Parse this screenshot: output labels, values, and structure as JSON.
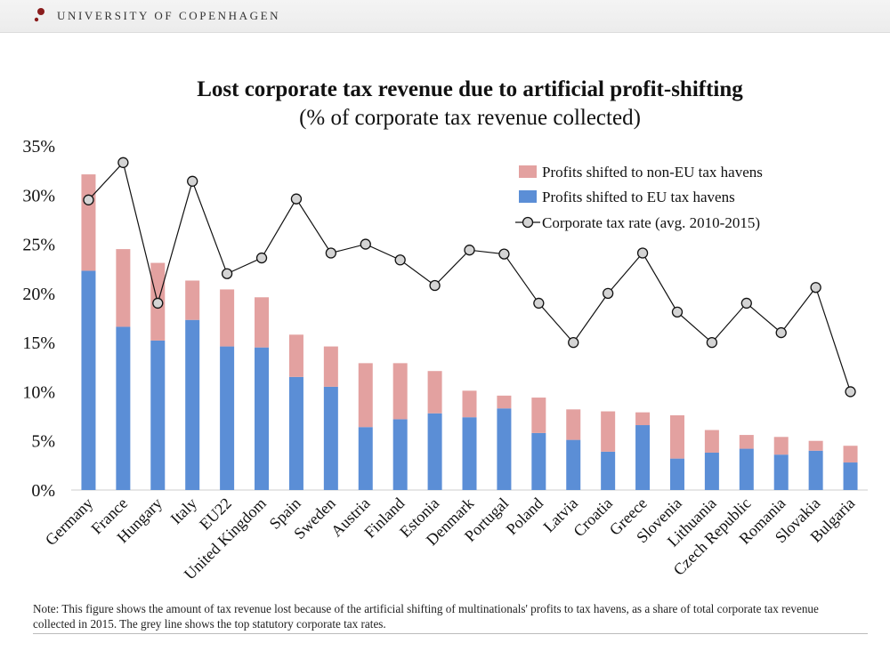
{
  "header": {
    "brand": "UNIVERSITY OF COPENHAGEN",
    "logo_icon": "university-seal-icon"
  },
  "note": {
    "text": "Note:  This figure shows the amount of  tax revenue lost because of the artificial shifting of multinationals' profits to tax havens, as a share of total corporate tax revenue collected in 2015. The grey line shows the top statutory corporate tax rates."
  },
  "colors": {
    "eu": "#5b8ed6",
    "non_eu": "#e3a1a0",
    "line": "#111111",
    "marker_fill": "#d4d4d4"
  },
  "chart_data": {
    "type": "bar",
    "stacked": true,
    "title": "Lost corporate tax revenue due to artificial profit-shifting",
    "subtitle": "(% of corporate tax revenue collected)",
    "ylim": [
      0,
      35
    ],
    "yticks": [
      "0%",
      "5%",
      "10%",
      "15%",
      "20%",
      "25%",
      "30%",
      "35%"
    ],
    "ytick_values": [
      0,
      5,
      10,
      15,
      20,
      25,
      30,
      35
    ],
    "grid": false,
    "legend_position": "top-right",
    "categories": [
      "Germany",
      "France",
      "Hungary",
      "Italy",
      "EU22",
      "United Kingdom",
      "Spain",
      "Sweden",
      "Austria",
      "Finland",
      "Estonia",
      "Denmark",
      "Portugal",
      "Poland",
      "Latvia",
      "Croatia",
      "Greece",
      "Slovenia",
      "Lithuania",
      "Czech Republic",
      "Romania",
      "Slovakia",
      "Bulgaria"
    ],
    "series": [
      {
        "name": "Profits shifted to EU tax havens",
        "kind": "bar",
        "values": [
          22.3,
          16.6,
          15.2,
          17.3,
          14.6,
          14.5,
          11.5,
          10.5,
          6.4,
          7.2,
          7.8,
          7.4,
          8.3,
          5.8,
          5.1,
          3.9,
          6.6,
          3.2,
          3.8,
          4.2,
          3.6,
          4.0,
          2.8
        ]
      },
      {
        "name": "Profits shifted to non-EU tax havens",
        "kind": "bar",
        "values": [
          9.8,
          7.9,
          7.9,
          4.0,
          5.8,
          5.1,
          4.3,
          4.1,
          6.5,
          5.7,
          4.3,
          2.7,
          1.3,
          3.6,
          3.1,
          4.1,
          1.3,
          4.4,
          2.3,
          1.4,
          1.8,
          1.0,
          1.7
        ]
      },
      {
        "name": "Corporate tax rate (avg. 2010-2015)",
        "kind": "line",
        "values": [
          29.5,
          33.3,
          19.0,
          31.4,
          22.0,
          23.6,
          29.6,
          24.1,
          25.0,
          23.4,
          20.8,
          24.4,
          24.0,
          19.0,
          15.0,
          20.0,
          24.1,
          18.1,
          15.0,
          19.0,
          16.0,
          20.6,
          10.0
        ]
      }
    ],
    "legend": [
      {
        "label": "Profits shifted to non-EU tax havens",
        "symbol": "box-non-eu"
      },
      {
        "label": "Profits shifted to EU tax havens",
        "symbol": "box-eu"
      },
      {
        "label": "Corporate tax rate (avg. 2010-2015)",
        "symbol": "line-marker"
      }
    ]
  }
}
